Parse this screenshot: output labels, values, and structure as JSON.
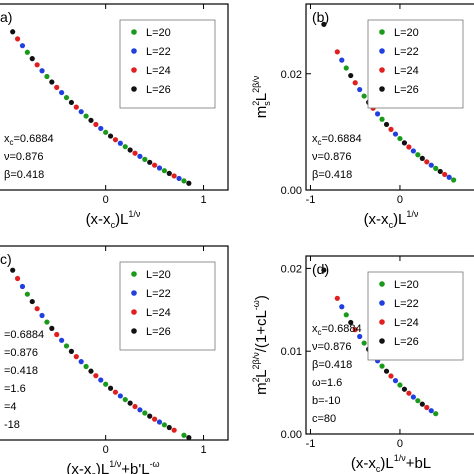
{
  "colors": {
    "L=20": "#1a9a1a",
    "L=22": "#1f3fe0",
    "L=24": "#e02020",
    "L=26": "#111111"
  },
  "chart_data": [
    {
      "type": "scatter",
      "panel": "a",
      "panel_label": "a)",
      "xlabel": {
        "base": "(x-x",
        "sub": "c",
        "mid": ")L",
        "sup": "1/ν",
        "tail": ""
      },
      "ylabel": null,
      "xlim": [
        -1.1,
        1.25
      ],
      "ylim": [
        0.0,
        1.0
      ],
      "xticks": [
        0,
        1
      ],
      "xtick_labels": [
        "0",
        "1"
      ],
      "yticks": [],
      "ytick_labels": [],
      "legend": [
        "L=20",
        "L=22",
        "L=24",
        "L=26"
      ],
      "legend_position": "top-right",
      "params": [
        {
          "base": "x",
          "sub": "c",
          "rest": "=0.6884"
        },
        {
          "base": "ν=0.876",
          "sub": "",
          "rest": ""
        },
        {
          "base": "β=0.418",
          "sub": "",
          "rest": ""
        }
      ],
      "curve": {
        "x_start": -1.0,
        "x_end": 1.0,
        "y_start": 0.89,
        "decay": 1.6,
        "floor": 0.0
      },
      "series": [
        {
          "name": "L=20",
          "x": [
            -0.8,
            -0.6,
            -0.4,
            -0.2,
            0.0,
            0.2,
            0.4,
            0.6,
            0.8
          ]
        },
        {
          "name": "L=22",
          "x": [
            -0.85,
            -0.65,
            -0.45,
            -0.25,
            -0.05,
            0.15,
            0.35,
            0.55,
            0.75
          ]
        },
        {
          "name": "L=24",
          "x": [
            -0.9,
            -0.7,
            -0.5,
            -0.3,
            -0.1,
            0.1,
            0.3,
            0.5,
            0.7
          ]
        },
        {
          "name": "L=26",
          "x": [
            -0.95,
            -0.75,
            -0.55,
            -0.35,
            -0.15,
            0.05,
            0.25,
            0.45,
            0.65,
            0.85
          ]
        }
      ]
    },
    {
      "type": "scatter",
      "panel": "b",
      "panel_label": "(b)",
      "xlabel": {
        "base": "(x-x",
        "sub": "c",
        "mid": ")L",
        "sup": "1/ν",
        "tail": ""
      },
      "ylabel": {
        "base": "m",
        "sup1": "2",
        "sub": "s",
        "mid": "L",
        "sup2": "2β/ν",
        "tail": ""
      },
      "xlim": [
        -1.05,
        0.85
      ],
      "ylim": [
        0.0,
        0.032
      ],
      "xticks": [
        -1,
        0
      ],
      "xtick_labels": [
        "-1",
        "0"
      ],
      "yticks": [
        0.0,
        0.02
      ],
      "ytick_labels": [
        "0.00",
        "0.02"
      ],
      "legend": [
        "L=20",
        "L=22",
        "L=24",
        "L=26"
      ],
      "legend_position": "top-right",
      "params": [
        {
          "base": "x",
          "sub": "c",
          "rest": "=0.6884"
        },
        {
          "base": "ν=0.876",
          "sub": "",
          "rest": ""
        },
        {
          "base": "β=0.418",
          "sub": "",
          "rest": ""
        }
      ],
      "curve": {
        "x_start": -0.85,
        "x_end": 0.8,
        "y_start": 0.0285,
        "decay": 1.8,
        "floor": 0.0
      },
      "series": [
        {
          "name": "L=20",
          "x": [
            -0.6,
            -0.4,
            -0.2,
            0.0,
            0.2,
            0.4,
            0.6
          ]
        },
        {
          "name": "L=22",
          "x": [
            -0.65,
            -0.45,
            -0.25,
            -0.05,
            0.15,
            0.35,
            0.55
          ]
        },
        {
          "name": "L=24",
          "x": [
            -0.7,
            -0.5,
            -0.3,
            -0.1,
            0.1,
            0.3,
            0.5
          ]
        },
        {
          "name": "L=26",
          "x": [
            -0.85,
            -0.55,
            -0.35,
            -0.15,
            0.05,
            0.25,
            0.45
          ]
        }
      ]
    },
    {
      "type": "scatter",
      "panel": "c",
      "panel_label": "c)",
      "xlabel": {
        "base": "(x-x",
        "sub": "c",
        "mid": ")L",
        "sup": "1/ν",
        "tail": "+b'L",
        "sup2": "-ω"
      },
      "ylabel": null,
      "xlim": [
        -1.1,
        1.25
      ],
      "ylim": [
        0.0,
        1.0
      ],
      "xticks": [
        0,
        1
      ],
      "xtick_labels": [
        "0",
        "1"
      ],
      "yticks": [],
      "ytick_labels": [],
      "legend": [
        "L=20",
        "L=22",
        "L=24",
        "L=26"
      ],
      "legend_position": "top-right",
      "params": [
        {
          "base": "=0.6884",
          "sub": "",
          "rest": ""
        },
        {
          "base": "=0.876",
          "sub": "",
          "rest": ""
        },
        {
          "base": "=0.418",
          "sub": "",
          "rest": ""
        },
        {
          "base": "=1.6",
          "sub": "",
          "rest": ""
        },
        {
          "base": "=4",
          "sub": "",
          "rest": ""
        },
        {
          "base": "-18",
          "sub": "",
          "rest": ""
        }
      ],
      "curve": {
        "x_start": -1.0,
        "x_end": 0.9,
        "y_start": 0.92,
        "decay": 1.7,
        "floor": 0.0
      },
      "series": [
        {
          "name": "L=20",
          "x": [
            -0.8,
            -0.6,
            -0.4,
            -0.2,
            0.0,
            0.2,
            0.4,
            0.6,
            0.8
          ]
        },
        {
          "name": "L=22",
          "x": [
            -0.85,
            -0.65,
            -0.45,
            -0.25,
            -0.05,
            0.15,
            0.35,
            0.55
          ]
        },
        {
          "name": "L=24",
          "x": [
            -0.9,
            -0.7,
            -0.5,
            -0.3,
            -0.1,
            0.1,
            0.3,
            0.5,
            0.7
          ]
        },
        {
          "name": "L=26",
          "x": [
            -0.95,
            -0.75,
            -0.55,
            -0.35,
            -0.15,
            0.05,
            0.25,
            0.45,
            0.65,
            0.85
          ]
        }
      ]
    },
    {
      "type": "scatter",
      "panel": "d",
      "panel_label": "(d)",
      "xlabel": {
        "base": "(x-x",
        "sub": "c",
        "mid": ")L",
        "sup": "1/ν",
        "tail": "+bL"
      },
      "ylabel": {
        "base": "m",
        "sup1": "2",
        "sub": "s",
        "mid": "L",
        "sup2": "2β/ν",
        "tail": "/(1+cL",
        "sup3": "-ω",
        "close": ")"
      },
      "xlim": [
        -1.05,
        0.85
      ],
      "ylim": [
        0.0,
        0.0215
      ],
      "xticks": [
        -1,
        0
      ],
      "xtick_labels": [
        "-1",
        "0"
      ],
      "yticks": [
        0.0,
        0.01,
        0.02
      ],
      "ytick_labels": [
        "0.00",
        "0.01",
        "0.02"
      ],
      "legend": [
        "L=20",
        "L=22",
        "L=24",
        "L=26"
      ],
      "legend_position": "top-right",
      "params": [
        {
          "base": "x",
          "sub": "c",
          "rest": "=0.6884"
        },
        {
          "base": "ν=0.876",
          "sub": "",
          "rest": ""
        },
        {
          "base": "β=0.418",
          "sub": "",
          "rest": ""
        },
        {
          "base": "ω=1.6",
          "sub": "",
          "rest": ""
        },
        {
          "base": "b=-10",
          "sub": "",
          "rest": ""
        },
        {
          "base": "c=80",
          "sub": "",
          "rest": ""
        }
      ],
      "curve": {
        "x_start": -0.85,
        "x_end": 0.8,
        "y_start": 0.0198,
        "decay": 1.9,
        "floor": 0.0
      },
      "series": [
        {
          "name": "L=20",
          "x": [
            -0.6,
            -0.4,
            -0.2,
            0.0,
            0.2,
            0.4
          ]
        },
        {
          "name": "L=22",
          "x": [
            -0.65,
            -0.45,
            -0.25,
            -0.05,
            0.15,
            0.35
          ]
        },
        {
          "name": "L=24",
          "x": [
            -0.7,
            -0.5,
            -0.3,
            -0.1,
            0.1,
            0.3
          ]
        },
        {
          "name": "L=26",
          "x": [
            -0.85,
            -0.55,
            -0.35,
            -0.15,
            0.05,
            0.25
          ]
        }
      ]
    }
  ]
}
